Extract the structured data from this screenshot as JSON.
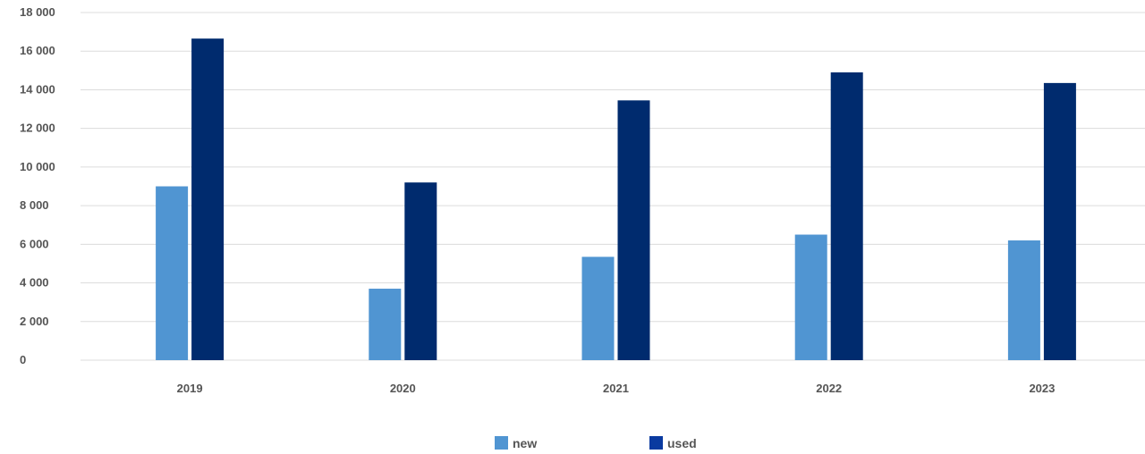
{
  "chart_data": {
    "type": "bar",
    "title": "",
    "xlabel": "",
    "ylabel": "",
    "categories": [
      "2019",
      "2020",
      "2021",
      "2022",
      "2023"
    ],
    "series": [
      {
        "name": "new",
        "color": "#5095d2",
        "values": [
          9000,
          3700,
          5350,
          6500,
          6200
        ]
      },
      {
        "name": "used",
        "color": "#002b6e",
        "values": [
          16650,
          9200,
          13450,
          14900,
          14350
        ]
      }
    ],
    "ylim": [
      0,
      18000
    ],
    "yticks": [
      0,
      2000,
      4000,
      6000,
      8000,
      10000,
      12000,
      14000,
      16000,
      18000
    ],
    "ytick_labels": [
      "0",
      "2 000",
      "4 000",
      "6 000",
      "8 000",
      "10 000",
      "12 000",
      "14 000",
      "16 000",
      "18 000"
    ],
    "grid": true,
    "legend_position": "bottom-center",
    "legend": [
      {
        "label": "new",
        "color": "#5095d2"
      },
      {
        "label": "used",
        "color": "#0a3aa0"
      }
    ]
  }
}
